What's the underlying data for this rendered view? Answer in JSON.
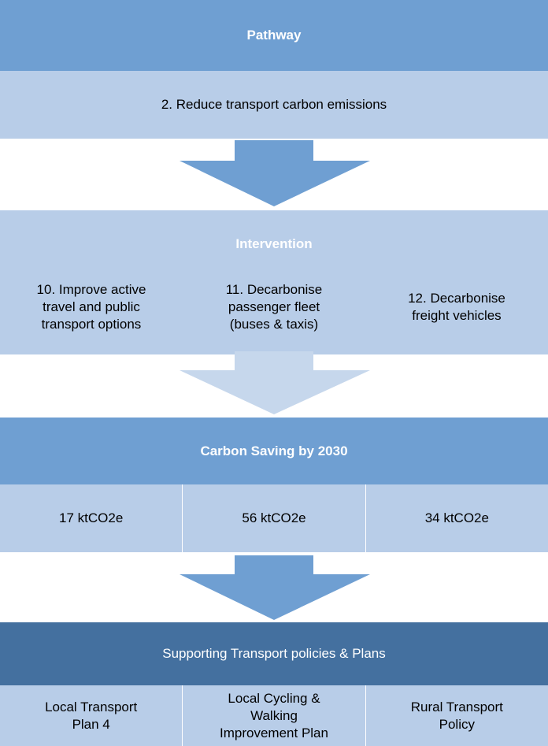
{
  "pathway": {
    "title": "Pathway",
    "items": [
      "2. Reduce transport carbon emissions"
    ]
  },
  "intervention": {
    "title": "Intervention",
    "items": [
      [
        "10.  Improve active",
        "travel and public",
        "transport options"
      ],
      [
        "11. Decarbonise",
        "passenger fleet",
        "(buses & taxis)"
      ],
      [
        "12. Decarbonise",
        "freight vehicles"
      ]
    ]
  },
  "carbon_saving": {
    "title": "Carbon Saving by 2030",
    "items": [
      "17 ktCO2e",
      "56 ktCO2e",
      "34 ktCO2e"
    ]
  },
  "supporting": {
    "title": "Supporting Transport policies & Plans",
    "items": [
      [
        "Local Transport",
        "Plan 4"
      ],
      [
        "Local Cycling &",
        "Walking",
        "Improvement Plan"
      ],
      [
        "Rural Transport",
        "Policy"
      ]
    ]
  }
}
